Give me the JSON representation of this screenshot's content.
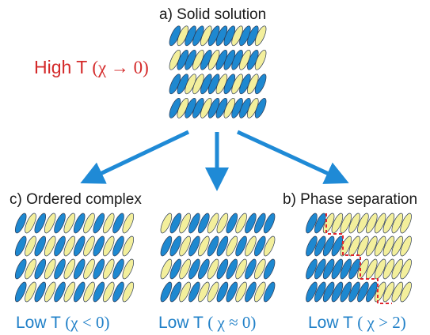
{
  "colors": {
    "blue": "#1e88d0",
    "yellow": "#f3ef9c",
    "outline": "#2b3a55",
    "arrow": "#1f8ad6",
    "high_label": "#d42a2a",
    "low_label": "#2080c8",
    "boundary": "#e0262d",
    "title": "#1a1a1a"
  },
  "top": {
    "title": "a) Solid solution",
    "temp_label": "High T",
    "condition": "(χ → 0)"
  },
  "left": {
    "title": "c) Ordered complex",
    "temp_label": "Low T",
    "condition": "(χ < 0)"
  },
  "middle": {
    "temp_label": "Low T",
    "condition": "( χ ≈ 0)"
  },
  "right": {
    "title": "b) Phase separation",
    "temp_label": "Low T",
    "condition": "( χ > 2)"
  }
}
